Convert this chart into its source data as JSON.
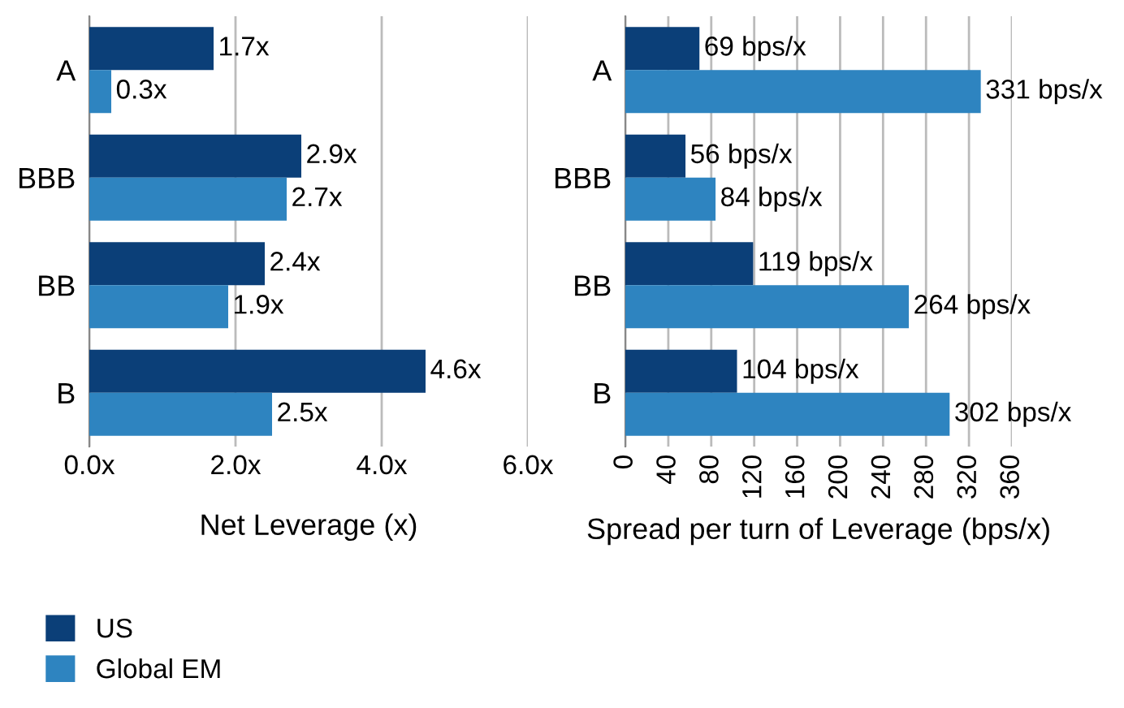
{
  "chart_data": [
    {
      "type": "bar",
      "orientation": "horizontal",
      "xlabel": "Net Leverage (x)",
      "categories": [
        "A",
        "BBB",
        "BB",
        "B"
      ],
      "series": [
        {
          "name": "US",
          "color": "#0b3f78",
          "values": [
            1.7,
            2.9,
            2.4,
            4.6
          ],
          "value_labels": [
            "1.7x",
            "2.9x",
            "2.4x",
            "4.6x"
          ]
        },
        {
          "name": "Global EM",
          "color": "#2e84c0",
          "values": [
            0.3,
            2.7,
            1.9,
            2.5
          ],
          "value_labels": [
            "0.3x",
            "2.7x",
            "1.9x",
            "2.5x"
          ]
        }
      ],
      "xlim": [
        0,
        6
      ],
      "xticks": [
        {
          "value": 0,
          "label": "0.0x"
        },
        {
          "value": 2,
          "label": "2.0x"
        },
        {
          "value": 4,
          "label": "4.0x"
        },
        {
          "value": 6,
          "label": "6.0x"
        }
      ],
      "grid": "x",
      "legend": "bottom left"
    },
    {
      "type": "bar",
      "orientation": "horizontal",
      "xlabel": "Spread per turn of Leverage (bps/x)",
      "categories": [
        "A",
        "BBB",
        "BB",
        "B"
      ],
      "series": [
        {
          "name": "US",
          "color": "#0b3f78",
          "values": [
            69,
            56,
            119,
            104
          ],
          "value_labels": [
            "69 bps/x",
            "56 bps/x",
            "119 bps/x",
            "104 bps/x"
          ]
        },
        {
          "name": "Global EM",
          "color": "#2e84c0",
          "values": [
            331,
            84,
            264,
            302
          ],
          "value_labels": [
            "331 bps/x",
            "84 bps/x",
            "264 bps/x",
            "302 bps/x"
          ]
        }
      ],
      "xlim": [
        0,
        360
      ],
      "xticks": [
        0,
        40,
        80,
        120,
        160,
        200,
        240,
        280,
        320,
        360
      ],
      "grid": "x"
    }
  ]
}
